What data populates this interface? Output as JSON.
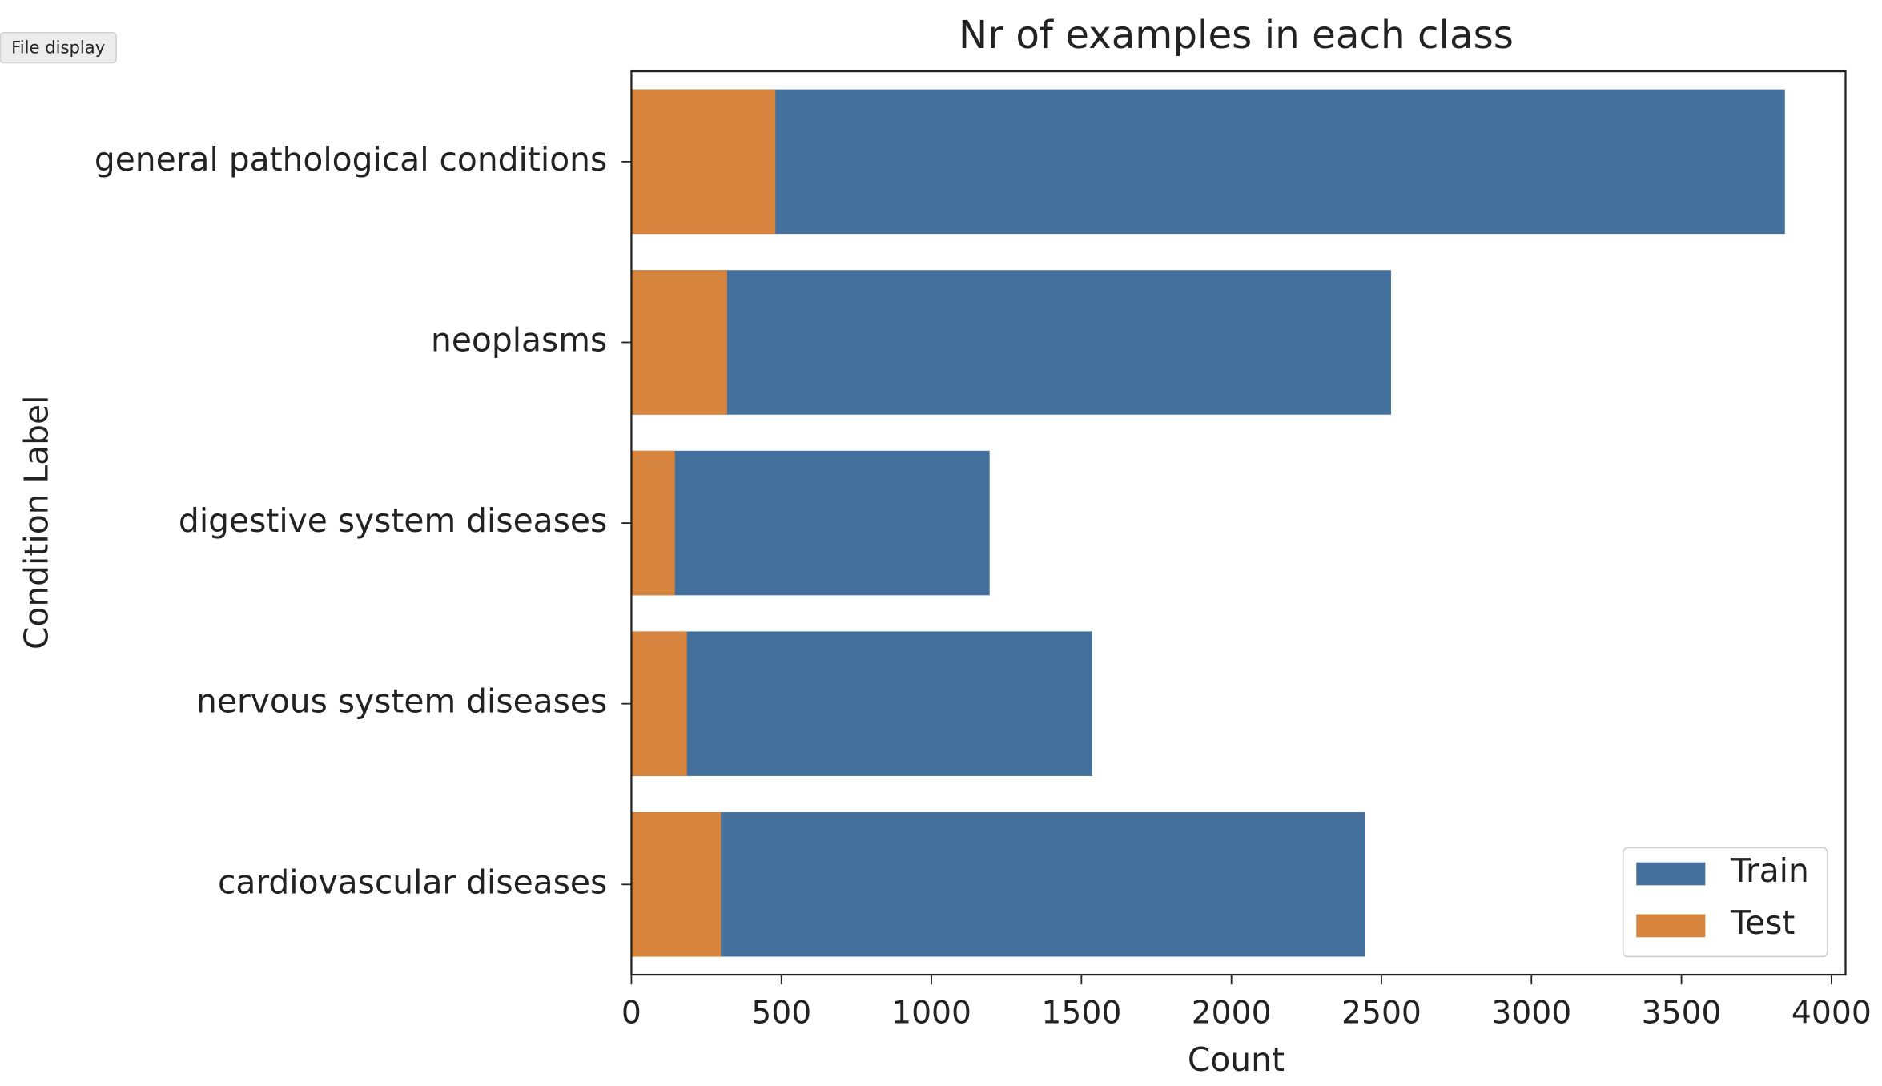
{
  "toolbar_button": "File display",
  "chart_data": {
    "type": "bar",
    "orientation": "horizontal",
    "overlay": true,
    "title": "Nr of examples in each class",
    "xlabel": "Count",
    "ylabel": "Condition Label",
    "categories": [
      "general pathological conditions",
      "neoplasms",
      "digestive system diseases",
      "nervous system diseases",
      "cardiovascular diseases"
    ],
    "series": [
      {
        "name": "Train",
        "color": "#44709d",
        "values": [
          3845,
          2532,
          1194,
          1536,
          2444
        ]
      },
      {
        "name": "Test",
        "color": "#d6843e",
        "values": [
          480,
          319,
          145,
          185,
          298
        ]
      }
    ],
    "xlim": [
      0,
      4047
    ],
    "xticks": [
      0,
      500,
      1000,
      1500,
      2000,
      2500,
      3000,
      3500,
      4000
    ],
    "grid": false,
    "legend": "lower right"
  }
}
